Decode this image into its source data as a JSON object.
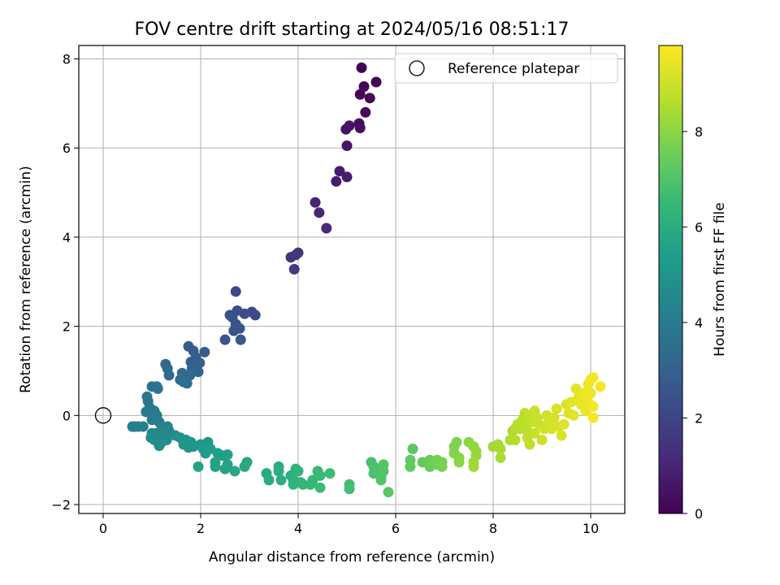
{
  "chart_data": {
    "type": "scatter",
    "title": "FOV centre drift starting at 2024/05/16 08:51:17",
    "xlabel": "Angular distance from reference (arcmin)",
    "ylabel": "Rotation from reference (arcmin)",
    "xlim": [
      -0.5,
      10.7
    ],
    "ylim": [
      -2.2,
      8.3
    ],
    "xticks": [
      0,
      2,
      4,
      6,
      8,
      10
    ],
    "yticks": [
      -2,
      0,
      2,
      4,
      6,
      8
    ],
    "grid": true,
    "legend": {
      "placement": "top-right",
      "entries": [
        {
          "label": "Reference platepar",
          "marker": "open-circle"
        }
      ]
    },
    "reference_point": {
      "x": 0,
      "y": 0
    },
    "colorbar": {
      "label": "Hours from first FF file",
      "colormap": "viridis",
      "range": [
        0,
        9.8
      ],
      "ticks": [
        0,
        2,
        4,
        6,
        8
      ],
      "colors": [
        "#440154",
        "#482878",
        "#3e4989",
        "#31688e",
        "#26828e",
        "#1f9e89",
        "#35b779",
        "#6ece58",
        "#b5de2b",
        "#fde725"
      ]
    },
    "points": [
      [
        5.3,
        7.8,
        0.0
      ],
      [
        5.6,
        7.48,
        0.05
      ],
      [
        5.35,
        7.38,
        0.1
      ],
      [
        5.27,
        7.2,
        0.15
      ],
      [
        5.47,
        7.12,
        0.2
      ],
      [
        5.38,
        6.8,
        0.25
      ],
      [
        5.25,
        6.55,
        0.35
      ],
      [
        5.27,
        6.45,
        0.4
      ],
      [
        5.05,
        6.5,
        0.45
      ],
      [
        4.98,
        6.42,
        0.5
      ],
      [
        5.0,
        6.05,
        0.55
      ],
      [
        4.85,
        5.48,
        0.7
      ],
      [
        5.0,
        5.35,
        0.75
      ],
      [
        4.78,
        5.25,
        0.8
      ],
      [
        4.35,
        4.78,
        1.0
      ],
      [
        4.43,
        4.55,
        1.05
      ],
      [
        4.58,
        4.2,
        1.1
      ],
      [
        3.85,
        3.55,
        1.5
      ],
      [
        3.95,
        3.6,
        1.55
      ],
      [
        4.0,
        3.65,
        1.6
      ],
      [
        3.92,
        3.28,
        1.65
      ],
      [
        2.72,
        2.78,
        2.1
      ],
      [
        3.05,
        2.32,
        2.2
      ],
      [
        3.12,
        2.25,
        2.25
      ],
      [
        2.9,
        2.28,
        2.3
      ],
      [
        2.75,
        2.35,
        2.35
      ],
      [
        2.6,
        2.25,
        2.4
      ],
      [
        2.65,
        2.2,
        2.45
      ],
      [
        2.72,
        2.05,
        2.5
      ],
      [
        2.8,
        1.95,
        2.55
      ],
      [
        2.68,
        1.9,
        2.6
      ],
      [
        2.5,
        1.7,
        2.65
      ],
      [
        2.82,
        1.7,
        2.7
      ],
      [
        1.75,
        1.55,
        2.8
      ],
      [
        1.85,
        1.45,
        2.85
      ],
      [
        2.08,
        1.42,
        2.9
      ],
      [
        1.9,
        1.3,
        2.95
      ],
      [
        1.8,
        1.2,
        3.0
      ],
      [
        1.98,
        1.18,
        3.05
      ],
      [
        1.82,
        1.05,
        3.1
      ],
      [
        1.95,
        0.98,
        3.15
      ],
      [
        1.28,
        1.15,
        3.2
      ],
      [
        1.32,
        1.05,
        3.25
      ],
      [
        1.35,
        0.9,
        3.3
      ],
      [
        1.62,
        0.95,
        3.35
      ],
      [
        1.78,
        0.9,
        3.4
      ],
      [
        1.58,
        0.8,
        3.45
      ],
      [
        1.72,
        0.72,
        3.5
      ],
      [
        1.65,
        0.75,
        3.55
      ],
      [
        1.0,
        0.65,
        3.6
      ],
      [
        1.1,
        0.65,
        3.65
      ],
      [
        1.12,
        0.6,
        3.7
      ],
      [
        0.9,
        0.42,
        3.8
      ],
      [
        0.92,
        0.32,
        3.85
      ],
      [
        0.95,
        0.18,
        3.9
      ],
      [
        1.05,
        0.1,
        3.95
      ],
      [
        0.88,
        0.08,
        4.0
      ],
      [
        1.1,
        0.0,
        4.05
      ],
      [
        1.0,
        -0.1,
        4.1
      ],
      [
        1.15,
        -0.15,
        4.15
      ],
      [
        0.82,
        -0.25,
        4.2
      ],
      [
        0.65,
        -0.25,
        4.25
      ],
      [
        0.72,
        -0.25,
        4.3
      ],
      [
        0.6,
        -0.25,
        4.32
      ],
      [
        1.32,
        -0.25,
        4.35
      ],
      [
        1.2,
        -0.3,
        4.4
      ],
      [
        1.35,
        -0.35,
        4.45
      ],
      [
        1.1,
        -0.4,
        4.5
      ],
      [
        1.0,
        -0.4,
        4.55
      ],
      [
        1.25,
        -0.42,
        4.6
      ],
      [
        1.15,
        -0.48,
        4.65
      ],
      [
        0.98,
        -0.5,
        4.7
      ],
      [
        1.3,
        -0.55,
        4.72
      ],
      [
        1.05,
        -0.55,
        4.75
      ],
      [
        1.2,
        -0.6,
        4.78
      ],
      [
        1.15,
        -0.68,
        4.8
      ],
      [
        1.48,
        -0.45,
        4.85
      ],
      [
        1.58,
        -0.5,
        4.9
      ],
      [
        1.7,
        -0.55,
        4.95
      ],
      [
        1.65,
        -0.65,
        5.0
      ],
      [
        1.8,
        -0.6,
        5.05
      ],
      [
        1.75,
        -0.72,
        5.1
      ],
      [
        1.85,
        -0.7,
        5.15
      ],
      [
        2.15,
        -0.6,
        5.2
      ],
      [
        2.0,
        -0.65,
        5.25
      ],
      [
        2.05,
        -0.75,
        5.3
      ],
      [
        2.2,
        -0.75,
        5.35
      ],
      [
        2.1,
        -0.85,
        5.4
      ],
      [
        2.35,
        -0.85,
        5.45
      ],
      [
        2.45,
        -0.9,
        5.5
      ],
      [
        2.55,
        -0.88,
        5.55
      ],
      [
        1.95,
        -1.15,
        5.6
      ],
      [
        2.3,
        -1.05,
        5.62
      ],
      [
        2.3,
        -1.15,
        5.65
      ],
      [
        2.55,
        -1.1,
        5.7
      ],
      [
        2.5,
        -1.2,
        5.75
      ],
      [
        2.7,
        -1.25,
        5.8
      ],
      [
        2.95,
        -1.05,
        5.85
      ],
      [
        2.9,
        -1.15,
        5.9
      ],
      [
        3.35,
        -1.3,
        5.95
      ],
      [
        3.4,
        -1.45,
        6.0
      ],
      [
        3.6,
        -1.15,
        6.05
      ],
      [
        3.6,
        -1.25,
        6.1
      ],
      [
        3.65,
        -1.45,
        6.15
      ],
      [
        3.85,
        -1.35,
        6.2
      ],
      [
        3.9,
        -1.45,
        6.25
      ],
      [
        3.9,
        -1.55,
        6.3
      ],
      [
        3.95,
        -1.2,
        6.35
      ],
      [
        4.0,
        -1.25,
        6.4
      ],
      [
        4.05,
        -1.5,
        6.45
      ],
      [
        4.1,
        -1.55,
        6.5
      ],
      [
        4.25,
        -1.55,
        6.52
      ],
      [
        4.3,
        -1.45,
        6.55
      ],
      [
        4.4,
        -1.25,
        6.6
      ],
      [
        4.45,
        -1.35,
        6.62
      ],
      [
        4.45,
        -1.62,
        6.65
      ],
      [
        4.65,
        -1.3,
        6.7
      ],
      [
        5.05,
        -1.55,
        6.75
      ],
      [
        5.05,
        -1.65,
        6.8
      ],
      [
        5.5,
        -1.05,
        6.85
      ],
      [
        5.55,
        -1.15,
        6.9
      ],
      [
        5.55,
        -1.3,
        6.95
      ],
      [
        5.65,
        -1.25,
        7.0
      ],
      [
        5.7,
        -1.38,
        7.05
      ],
      [
        5.7,
        -1.45,
        7.1
      ],
      [
        5.75,
        -1.25,
        7.15
      ],
      [
        5.75,
        -1.1,
        7.2
      ],
      [
        5.85,
        -1.72,
        7.25
      ],
      [
        6.35,
        -0.75,
        7.3
      ],
      [
        6.3,
        -1.0,
        7.35
      ],
      [
        6.3,
        -1.15,
        7.4
      ],
      [
        6.55,
        -1.05,
        7.45
      ],
      [
        6.7,
        -1.0,
        7.5
      ],
      [
        6.7,
        -1.15,
        7.55
      ],
      [
        6.8,
        -1.05,
        7.6
      ],
      [
        6.85,
        -1.1,
        7.65
      ],
      [
        6.85,
        -1.0,
        7.7
      ],
      [
        6.95,
        -1.05,
        7.75
      ],
      [
        6.95,
        -1.15,
        7.8
      ],
      [
        7.2,
        -0.7,
        7.85
      ],
      [
        7.25,
        -0.6,
        7.9
      ],
      [
        7.2,
        -0.85,
        7.95
      ],
      [
        7.3,
        -0.95,
        8.0
      ],
      [
        7.3,
        -1.05,
        8.05
      ],
      [
        7.5,
        -0.6,
        8.1
      ],
      [
        7.6,
        -0.7,
        8.15
      ],
      [
        7.65,
        -0.8,
        8.2
      ],
      [
        7.65,
        -0.9,
        8.25
      ],
      [
        7.6,
        -1.05,
        8.3
      ],
      [
        7.6,
        -1.15,
        8.35
      ],
      [
        8.0,
        -0.7,
        8.4
      ],
      [
        8.1,
        -0.65,
        8.45
      ],
      [
        8.15,
        -0.75,
        8.5
      ],
      [
        8.15,
        -0.95,
        8.55
      ],
      [
        8.35,
        -0.55,
        8.6
      ],
      [
        8.4,
        -0.35,
        8.62
      ],
      [
        8.45,
        -0.3,
        8.65
      ],
      [
        8.45,
        -0.55,
        8.7
      ],
      [
        8.5,
        -0.2,
        8.72
      ],
      [
        8.55,
        -0.3,
        8.75
      ],
      [
        8.6,
        -0.1,
        8.78
      ],
      [
        8.65,
        -0.25,
        8.8
      ],
      [
        8.65,
        0.05,
        8.82
      ],
      [
        8.7,
        -0.35,
        8.85
      ],
      [
        8.7,
        -0.5,
        8.88
      ],
      [
        8.75,
        -0.65,
        8.9
      ],
      [
        8.75,
        0.0,
        8.92
      ],
      [
        8.8,
        -0.15,
        8.95
      ],
      [
        8.85,
        0.1,
        8.98
      ],
      [
        8.85,
        -0.4,
        9.0
      ],
      [
        8.9,
        -0.05,
        9.02
      ],
      [
        8.95,
        -0.2,
        9.05
      ],
      [
        9.0,
        -0.55,
        9.08
      ],
      [
        9.05,
        -0.3,
        9.1
      ],
      [
        9.1,
        0.0,
        9.12
      ],
      [
        9.15,
        -0.15,
        9.15
      ],
      [
        9.2,
        -0.3,
        9.18
      ],
      [
        9.25,
        -0.05,
        9.2
      ],
      [
        9.3,
        0.15,
        9.22
      ],
      [
        9.35,
        -0.25,
        9.25
      ],
      [
        9.4,
        -0.45,
        9.28
      ],
      [
        9.45,
        -0.2,
        9.3
      ],
      [
        9.5,
        0.25,
        9.32
      ],
      [
        9.55,
        0.05,
        9.35
      ],
      [
        9.6,
        0.3,
        9.38
      ],
      [
        9.65,
        0.0,
        9.4
      ],
      [
        9.7,
        0.6,
        9.42
      ],
      [
        9.75,
        0.4,
        9.45
      ],
      [
        9.8,
        0.25,
        9.48
      ],
      [
        9.85,
        0.5,
        9.5
      ],
      [
        9.9,
        0.1,
        9.52
      ],
      [
        9.95,
        0.7,
        9.55
      ],
      [
        9.95,
        0.3,
        9.58
      ],
      [
        10.0,
        0.8,
        9.6
      ],
      [
        10.0,
        0.5,
        9.62
      ],
      [
        10.05,
        0.85,
        9.65
      ],
      [
        10.05,
        0.2,
        9.68
      ],
      [
        10.05,
        -0.05,
        9.7
      ],
      [
        10.2,
        0.65,
        9.72
      ]
    ]
  }
}
